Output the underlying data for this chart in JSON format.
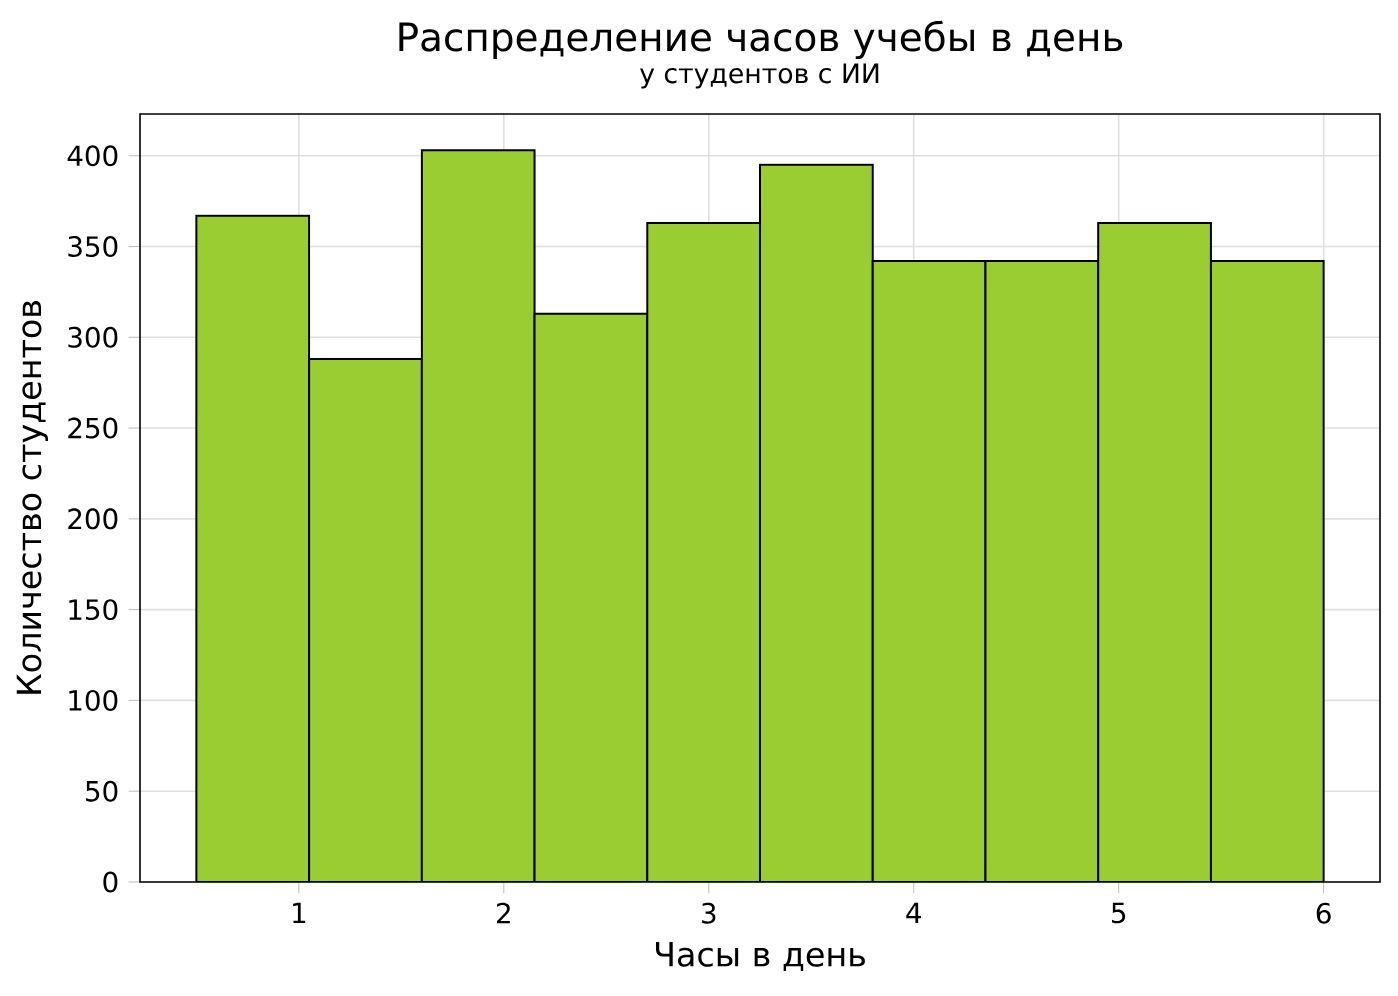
{
  "chart_data": {
    "type": "histogram",
    "title": "Распределение часов учебы в день",
    "subtitle": "у студентов с ИИ",
    "xlabel": "Часы в день",
    "ylabel": "Количество студентов",
    "bins": [
      0.5,
      1.05,
      1.6,
      2.15,
      2.7,
      3.25,
      3.8,
      4.35,
      4.9,
      5.45,
      6.0
    ],
    "values": [
      367,
      288,
      403,
      313,
      363,
      395,
      342,
      342,
      363,
      342
    ],
    "color": "#9acd32",
    "xlim": [
      0.225,
      6.275
    ],
    "ylim": [
      0,
      423
    ],
    "xticks": [
      1,
      2,
      3,
      4,
      5,
      6
    ],
    "yticks": [
      0,
      50,
      100,
      150,
      200,
      250,
      300,
      350,
      400
    ],
    "grid": true
  }
}
